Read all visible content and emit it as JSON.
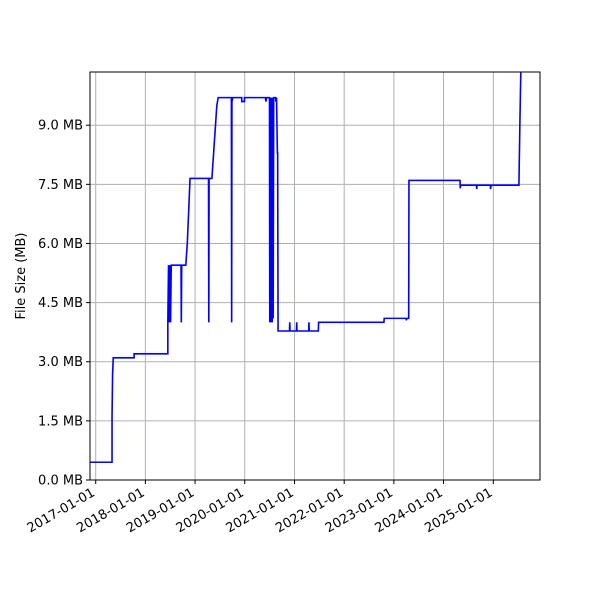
{
  "chart_data": {
    "type": "line",
    "title": "",
    "xlabel": "",
    "ylabel": "File Size (MB)",
    "grid": true,
    "legend": "none",
    "line_color": "#0000ff",
    "xlim": [
      "2016-11-20",
      "2025-12-10"
    ],
    "ylim": [
      0,
      10.35
    ],
    "x_tick_values": [
      "2017-01-01",
      "2018-01-01",
      "2019-01-01",
      "2020-01-01",
      "2021-01-01",
      "2022-01-01",
      "2023-01-01",
      "2024-01-01",
      "2025-01-01"
    ],
    "x_tick_labels": [
      "2017-01-01",
      "2018-01-01",
      "2019-01-01",
      "2020-01-01",
      "2021-01-01",
      "2022-01-01",
      "2023-01-01",
      "2024-01-01",
      "2025-01-01"
    ],
    "y_tick_values": [
      0,
      1.5,
      3.0,
      4.5,
      6.0,
      7.5,
      9.0
    ],
    "y_tick_labels": [
      "0.0 MB",
      "1.5 MB",
      "3.0 MB",
      "4.5 MB",
      "6.0 MB",
      "7.5 MB",
      "9.0 MB"
    ],
    "series": [
      {
        "points": [
          [
            "2016-11-20",
            0.45
          ],
          [
            "2017-05-01",
            0.45
          ],
          [
            "2017-05-01",
            1.6
          ],
          [
            "2017-05-05",
            2.7
          ],
          [
            "2017-05-10",
            3.1
          ],
          [
            "2017-10-10",
            3.1
          ],
          [
            "2017-10-10",
            3.2
          ],
          [
            "2018-06-15",
            3.2
          ],
          [
            "2018-06-15",
            4.0
          ],
          [
            "2018-06-20",
            5.45
          ],
          [
            "2018-06-25",
            4.0
          ],
          [
            "2018-07-01",
            5.45
          ],
          [
            "2018-07-05",
            4.0
          ],
          [
            "2018-07-10",
            5.45
          ],
          [
            "2018-09-20",
            5.45
          ],
          [
            "2018-09-22",
            4.0
          ],
          [
            "2018-09-25",
            5.45
          ],
          [
            "2018-10-25",
            5.45
          ],
          [
            "2018-11-05",
            6.0
          ],
          [
            "2018-11-15",
            6.8
          ],
          [
            "2018-11-25",
            7.65
          ],
          [
            "2019-04-10",
            7.65
          ],
          [
            "2019-04-12",
            4.0
          ],
          [
            "2019-04-14",
            7.65
          ],
          [
            "2019-05-05",
            7.65
          ],
          [
            "2019-06-10",
            9.5
          ],
          [
            "2019-06-20",
            9.7
          ],
          [
            "2019-09-25",
            9.7
          ],
          [
            "2019-09-27",
            4.0
          ],
          [
            "2019-09-29",
            9.6
          ],
          [
            "2019-10-05",
            9.7
          ],
          [
            "2019-12-10",
            9.7
          ],
          [
            "2019-12-10",
            9.6
          ],
          [
            "2019-12-30",
            9.6
          ],
          [
            "2019-12-30",
            9.7
          ],
          [
            "2020-06-01",
            9.7
          ],
          [
            "2020-06-05",
            9.6
          ],
          [
            "2020-06-10",
            9.7
          ],
          [
            "2020-07-01",
            9.7
          ],
          [
            "2020-07-03",
            4.0
          ],
          [
            "2020-07-06",
            9.7
          ],
          [
            "2020-07-09",
            4.0
          ],
          [
            "2020-07-12",
            9.7
          ],
          [
            "2020-07-15",
            4.0
          ],
          [
            "2020-07-18",
            9.7
          ],
          [
            "2020-07-21",
            4.0
          ],
          [
            "2020-07-24",
            9.7
          ],
          [
            "2020-07-28",
            4.1
          ],
          [
            "2020-08-01",
            9.7
          ],
          [
            "2020-08-15",
            9.7
          ],
          [
            "2020-08-17",
            9.6
          ],
          [
            "2020-08-22",
            9.7
          ],
          [
            "2020-08-28",
            8.3
          ],
          [
            "2020-08-30",
            8.3
          ],
          [
            "2020-09-02",
            3.78
          ],
          [
            "2020-11-25",
            3.78
          ],
          [
            "2020-11-27",
            4.0
          ],
          [
            "2020-11-29",
            3.78
          ],
          [
            "2021-01-15",
            3.78
          ],
          [
            "2021-01-17",
            4.0
          ],
          [
            "2021-01-19",
            3.78
          ],
          [
            "2021-04-15",
            3.78
          ],
          [
            "2021-04-17",
            4.0
          ],
          [
            "2021-04-19",
            3.78
          ],
          [
            "2021-06-25",
            3.78
          ],
          [
            "2021-06-27",
            4.0
          ],
          [
            "2022-10-20",
            4.0
          ],
          [
            "2022-10-22",
            4.1
          ],
          [
            "2023-04-01",
            4.1
          ],
          [
            "2023-04-03",
            4.05
          ],
          [
            "2023-04-06",
            4.1
          ],
          [
            "2023-04-20",
            4.1
          ],
          [
            "2023-04-22",
            7.6
          ],
          [
            "2024-05-01",
            7.6
          ],
          [
            "2024-05-03",
            7.4
          ],
          [
            "2024-05-06",
            7.48
          ],
          [
            "2024-08-30",
            7.48
          ],
          [
            "2024-09-01",
            7.38
          ],
          [
            "2024-09-03",
            7.48
          ],
          [
            "2024-12-10",
            7.48
          ],
          [
            "2024-12-12",
            7.38
          ],
          [
            "2024-12-15",
            7.48
          ],
          [
            "2025-07-08",
            7.48
          ],
          [
            "2025-07-15",
            9.0
          ],
          [
            "2025-07-22",
            10.35
          ]
        ]
      }
    ]
  }
}
